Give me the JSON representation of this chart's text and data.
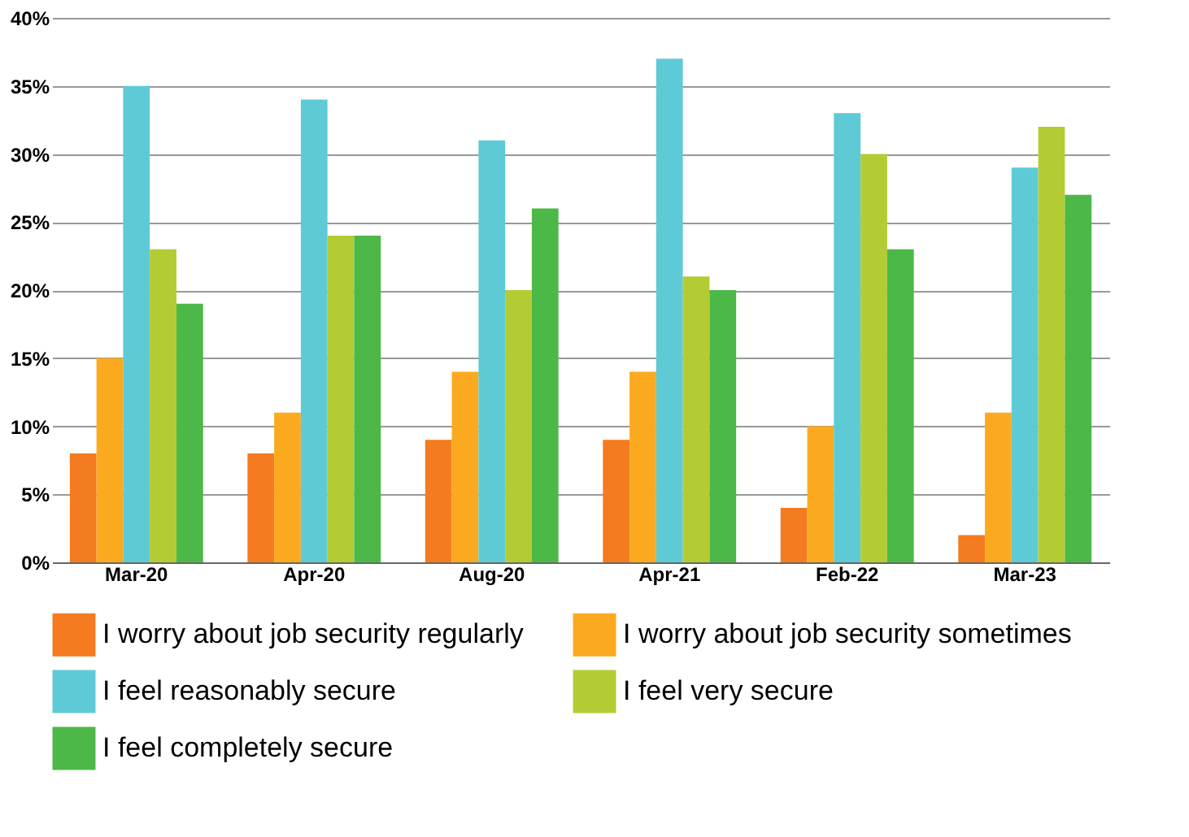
{
  "chart_data": {
    "type": "bar",
    "categories": [
      "Mar-20",
      "Apr-20",
      "Aug-20",
      "Apr-21",
      "Feb-22",
      "Mar-23"
    ],
    "series": [
      {
        "name": "I worry about job security regularly",
        "color": "#f47b20",
        "values": [
          8,
          8,
          9,
          9,
          4,
          2
        ]
      },
      {
        "name": "I worry about job security sometimes",
        "color": "#fbaa1f",
        "values": [
          15,
          11,
          14,
          14,
          10,
          11
        ]
      },
      {
        "name": "I feel reasonably secure",
        "color": "#5ecad6",
        "values": [
          35,
          34,
          31,
          37,
          33,
          29
        ]
      },
      {
        "name": "I feel very secure",
        "color": "#b3cc34",
        "values": [
          23,
          24,
          20,
          21,
          30,
          32
        ]
      },
      {
        "name": "I feel completely secure",
        "color": "#4cb848",
        "values": [
          19,
          24,
          26,
          20,
          23,
          27
        ]
      }
    ],
    "ylim": [
      0,
      40
    ],
    "yticks": [
      {
        "value": 0,
        "label": "0%"
      },
      {
        "value": 5,
        "label": "5%"
      },
      {
        "value": 10,
        "label": "10%"
      },
      {
        "value": 15,
        "label": "15%"
      },
      {
        "value": 20,
        "label": "20%"
      },
      {
        "value": 25,
        "label": "25%"
      },
      {
        "value": 30,
        "label": "30%"
      },
      {
        "value": 35,
        "label": "35%"
      },
      {
        "value": 40,
        "label": "40%"
      }
    ],
    "grid": "y",
    "legend": "bottom"
  }
}
